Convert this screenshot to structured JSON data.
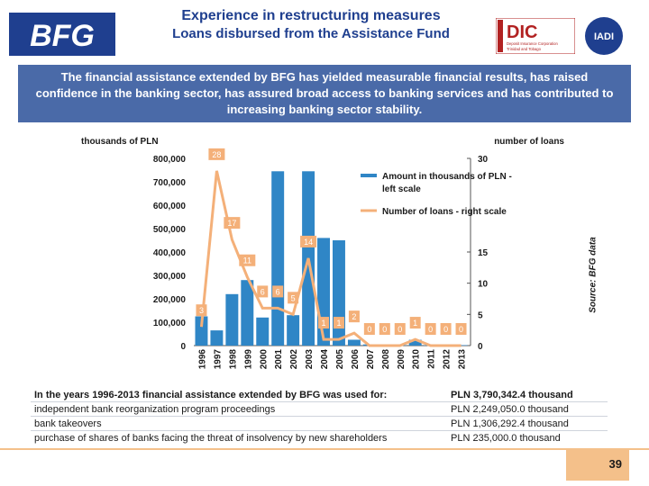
{
  "header": {
    "title_line1": "Experience in restructuring measures",
    "title_line2": "Loans disbursed from the Assistance Fund",
    "logo_left": "BFG",
    "logo_dic": "DIC",
    "logo_dic_sub1": "Deposit Insurance Corporation",
    "logo_dic_sub2": "Trinidad and Tobago",
    "logo_iadi": "IADI"
  },
  "banner": {
    "text": "The financial assistance extended by BFG has yielded measurable financial results, has raised confidence in the banking sector, has assured broad access to banking services and has contributed to increasing banking sector stability."
  },
  "colors": {
    "bar": "#2f86c6",
    "line": "#f4b079",
    "title": "#1f3f8f",
    "banner": "#4a6aa8",
    "page_tab": "#f4c08a"
  },
  "chart_data": {
    "type": "bar",
    "categories": [
      "1996",
      "1997",
      "1998",
      "1999",
      "2000",
      "2001",
      "2002",
      "2003",
      "2004",
      "2005",
      "2006",
      "2007",
      "2008",
      "2009",
      "2010",
      "2011",
      "2012",
      "2013"
    ],
    "series": [
      {
        "name": "Amount in thousands of PLN - left scale",
        "type": "bar",
        "axis": "left",
        "values": [
          125000,
          65000,
          220000,
          280000,
          120000,
          745000,
          130000,
          745000,
          460000,
          450000,
          25000,
          5000,
          2000,
          2000,
          25000,
          2000,
          2000,
          2000
        ]
      },
      {
        "name": "Number of loans - right scale",
        "type": "line",
        "axis": "right",
        "values": [
          3,
          28,
          17,
          11,
          6,
          6,
          5,
          14,
          1,
          1,
          2,
          0,
          0,
          0,
          1,
          0,
          0,
          0
        ]
      }
    ],
    "line_labels": [
      "3",
      "28",
      "17",
      "11",
      "6",
      "6",
      "5",
      "14",
      "1",
      "1",
      "2",
      "0",
      "0",
      "0",
      "1",
      "0",
      "0",
      "0"
    ],
    "left_axis_title": "thousands of PLN",
    "right_axis_title": "number of loans",
    "left_ticks": [
      "800,000",
      "700,000",
      "600,000",
      "500,000",
      "400,000",
      "300,000",
      "200,000",
      "100,000",
      "0"
    ],
    "left_tick_values": [
      800000,
      700000,
      600000,
      500000,
      400000,
      300000,
      200000,
      100000,
      0
    ],
    "right_ticks": [
      "30",
      "15",
      "10",
      "5",
      "0"
    ],
    "right_tick_values": [
      30,
      15,
      10,
      5,
      0
    ],
    "ylim_left": [
      0,
      800000
    ],
    "ylim_right": [
      0,
      30
    ],
    "legend_position": "top-right",
    "grid": false
  },
  "source_note": "Source: BFG data",
  "summary_table": [
    {
      "label": "In the years 1996-2013 financial assistance extended by BFG was used for:",
      "amount": "PLN 3,790,342.4 thousand"
    },
    {
      "label": "independent bank reorganization program proceedings",
      "amount": "PLN 2,249,050.0 thousand"
    },
    {
      "label": "bank takeovers",
      "amount": "PLN 1,306,292.4 thousand"
    },
    {
      "label": "purchase of shares of banks facing the threat of insolvency by new shareholders",
      "amount": "PLN 235,000.0 thousand"
    }
  ],
  "page_number": "39"
}
